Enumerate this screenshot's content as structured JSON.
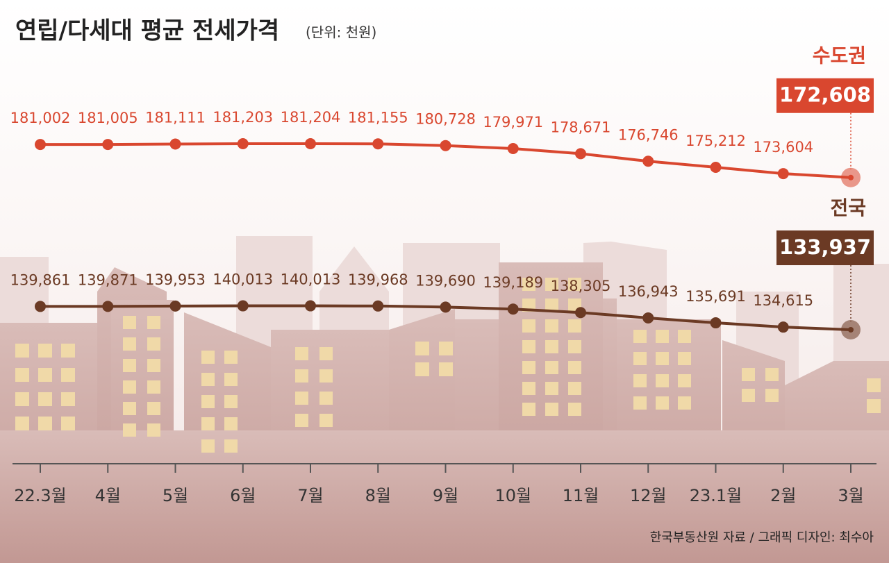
{
  "chart_data": {
    "type": "line",
    "title": "연립/다세대 평균 전세가격",
    "subtitle": "(단위: 천원)",
    "source": "한국부동산원 자료 / 그래픽 디자인: 최수아",
    "categories": [
      "22.3월",
      "4월",
      "5월",
      "6월",
      "7월",
      "8월",
      "9월",
      "10월",
      "11월",
      "12월",
      "23.1월",
      "2월",
      "3월"
    ],
    "series": [
      {
        "name": "수도권",
        "color": "#d9472f",
        "values": [
          181002,
          181005,
          181111,
          181203,
          181204,
          181155,
          180728,
          179971,
          178671,
          176746,
          175212,
          173604,
          172608
        ],
        "value_labels": [
          "181,002",
          "181,005",
          "181,111",
          "181,203",
          "181,204",
          "181,155",
          "180,728",
          "179,971",
          "178,671",
          "176,746",
          "175,212",
          "173,604",
          "172,608"
        ]
      },
      {
        "name": "전국",
        "color": "#6b3a24",
        "values": [
          139861,
          139871,
          139953,
          140013,
          140013,
          139968,
          139690,
          139189,
          138305,
          136943,
          135691,
          134615,
          133937
        ],
        "value_labels": [
          "139,861",
          "139,871",
          "139,953",
          "140,013",
          "140,013",
          "139,968",
          "139,690",
          "139,189",
          "138,305",
          "136,943",
          "135,691",
          "134,615",
          "133,937"
        ]
      }
    ]
  }
}
